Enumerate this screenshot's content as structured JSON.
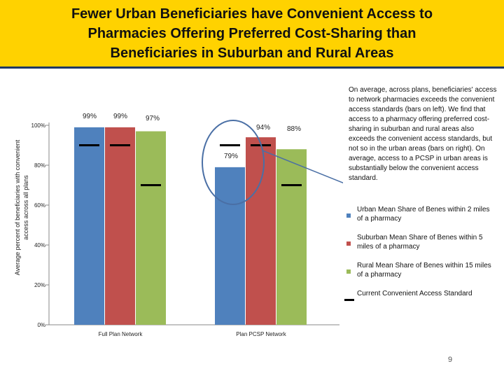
{
  "title_lines": [
    "Fewer Urban Beneficiaries have Convenient Access to",
    "Pharmacies Offering Preferred Cost-Sharing than",
    "Beneficiaries in Suburban and Rural Areas"
  ],
  "note": "On average, across plans, beneficiaries' access to network pharmacies exceeds the convenient access standards (bars on left). We find that access to a pharmacy offering preferred cost-sharing in suburban and rural areas also exceeds the convenient access standards, but not so in the urban areas (bars on right). On average, access to a PCSP in urban areas is substantially below the convenient access standard.",
  "legend": [
    {
      "label": "Urban Mean Share of Benes within 2 miles of a pharmacy",
      "color": "#4f81bd"
    },
    {
      "label": "Suburban Mean Share of Benes within 5 miles of a pharmacy",
      "color": "#c0504d"
    },
    {
      "label": "Rural Mean Share of Benes within 15 miles of a pharmacy",
      "color": "#9bbb59"
    },
    {
      "label": "Current Convenient Access Standard",
      "color": "#000000"
    }
  ],
  "page_number": "9",
  "chart_data": {
    "type": "bar",
    "ylabel": "Average percent of beneficiaries with convenient access across all plans",
    "ylim": [
      0,
      100
    ],
    "yticks": [
      0,
      20,
      40,
      60,
      80,
      100
    ],
    "ytick_labels": [
      "0%",
      "20%",
      "40%",
      "60%",
      "80%",
      "100%"
    ],
    "categories": [
      "Full Plan Network",
      "Plan PCSP Network"
    ],
    "series": [
      {
        "name": "Urban Mean Share of Benes within 2 miles of a pharmacy",
        "color": "#4f81bd",
        "values": [
          99,
          79
        ],
        "labels": [
          "99%",
          "79%"
        ]
      },
      {
        "name": "Suburban Mean Share of Benes within 5 miles of a pharmacy",
        "color": "#c0504d",
        "values": [
          99,
          94
        ],
        "labels": [
          "99%",
          "94%"
        ]
      },
      {
        "name": "Rural Mean Share of Benes within 15 miles of a pharmacy",
        "color": "#9bbb59",
        "values": [
          97,
          88
        ],
        "labels": [
          "97%",
          "88%"
        ]
      }
    ],
    "standard": {
      "name": "Current Convenient Access Standard",
      "values": [
        [
          90,
          90,
          70
        ],
        [
          90,
          90,
          70
        ]
      ]
    },
    "annotation": "circle around urban PCSP bar"
  }
}
